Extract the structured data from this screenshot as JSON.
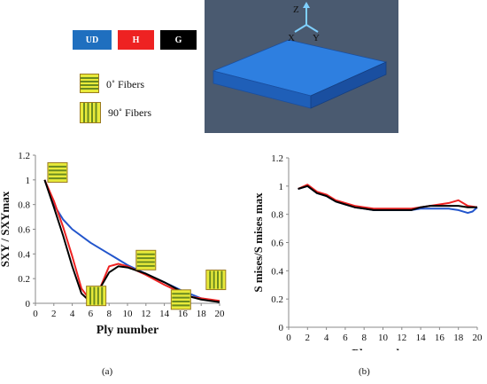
{
  "legend": {
    "ud_label": "UD",
    "ud_color": "#1f6fbf",
    "h_label": "H",
    "h_color": "#ee2222",
    "g_label": "G",
    "g_color": "#000000",
    "fiber0_label": "0˚ Fibers",
    "fiber90_label": "90˚ Fibers"
  },
  "model3d": {
    "axis_z": "Z",
    "axis_x": "X",
    "axis_y": "Y",
    "background": "#4a5a70",
    "plate_color": "#2e7fe0"
  },
  "chart_data": [
    {
      "type": "line",
      "panel": "(a)",
      "xlabel": "Ply number",
      "ylabel": "SXY / SXYmax",
      "xlim": [
        0,
        20
      ],
      "ylim": [
        0,
        1.2
      ],
      "xticks": [
        0,
        2,
        4,
        6,
        8,
        10,
        12,
        14,
        16,
        18,
        20
      ],
      "yticks": [
        0,
        0.2,
        0.4,
        0.6,
        0.8,
        1,
        1.2
      ],
      "ytick_labels": [
        "0",
        "0.2",
        "0.4",
        "0.6",
        "0.8",
        "1",
        "1.2"
      ],
      "series": [
        {
          "key": "UD",
          "color": "#2255cc",
          "x": [
            1,
            2,
            3,
            4,
            6,
            8,
            10,
            12,
            14,
            16,
            18,
            20
          ],
          "y": [
            1.0,
            0.8,
            0.68,
            0.6,
            0.49,
            0.4,
            0.31,
            0.24,
            0.17,
            0.1,
            0.04,
            0.01
          ]
        },
        {
          "key": "H",
          "color": "#ee2222",
          "x": [
            1,
            2,
            3,
            4,
            5,
            6,
            7,
            8,
            9,
            10,
            12,
            14,
            16,
            17,
            18,
            19,
            20
          ],
          "y": [
            1.0,
            0.83,
            0.62,
            0.38,
            0.12,
            0.02,
            0.12,
            0.3,
            0.32,
            0.3,
            0.23,
            0.15,
            0.08,
            0.05,
            0.04,
            0.03,
            0.02
          ]
        },
        {
          "key": "G",
          "color": "#000000",
          "x": [
            1,
            2,
            3,
            4,
            5,
            6,
            6.5,
            7,
            8,
            9,
            10,
            12,
            14,
            16,
            17,
            18,
            19,
            20
          ],
          "y": [
            1.0,
            0.78,
            0.55,
            0.3,
            0.08,
            0.01,
            0.04,
            0.12,
            0.25,
            0.3,
            0.29,
            0.24,
            0.17,
            0.09,
            0.05,
            0.03,
            0.02,
            0.01
          ]
        }
      ],
      "fiber_markers": [
        {
          "kind": "0",
          "x": 2.4,
          "y": 1.06
        },
        {
          "kind": "90",
          "x": 6.6,
          "y": 0.06
        },
        {
          "kind": "0",
          "x": 12.0,
          "y": 0.35
        },
        {
          "kind": "0",
          "x": 15.8,
          "y": 0.03
        },
        {
          "kind": "90",
          "x": 19.6,
          "y": 0.19
        }
      ]
    },
    {
      "type": "line",
      "panel": "(b)",
      "xlabel": "Ply number",
      "ylabel": "S mises/S mises max",
      "xlim": [
        0,
        20
      ],
      "ylim": [
        0,
        1.2
      ],
      "xticks": [
        0,
        2,
        4,
        6,
        8,
        10,
        12,
        14,
        16,
        18,
        20
      ],
      "yticks": [
        0,
        0.2,
        0.4,
        0.6,
        0.8,
        1,
        1.2
      ],
      "ytick_labels": [
        "0",
        "0.2",
        "0.4",
        "0.6",
        "0.8",
        "1",
        "1.2"
      ],
      "series": [
        {
          "key": "UD",
          "color": "#2255cc",
          "x": [
            1,
            2,
            3,
            4,
            5,
            6,
            7,
            8,
            9,
            10,
            11,
            12,
            13,
            14,
            15,
            16,
            17,
            18,
            19,
            19.5,
            20
          ],
          "y": [
            0.98,
            1.0,
            0.95,
            0.93,
            0.89,
            0.87,
            0.85,
            0.84,
            0.83,
            0.83,
            0.83,
            0.83,
            0.83,
            0.84,
            0.84,
            0.84,
            0.84,
            0.83,
            0.81,
            0.82,
            0.85
          ]
        },
        {
          "key": "H",
          "color": "#ee2222",
          "x": [
            1,
            2,
            3,
            4,
            5,
            6,
            7,
            8,
            9,
            10,
            11,
            12,
            13,
            14,
            15,
            16,
            17,
            18,
            19,
            20
          ],
          "y": [
            0.98,
            1.01,
            0.96,
            0.94,
            0.9,
            0.88,
            0.86,
            0.85,
            0.84,
            0.84,
            0.84,
            0.84,
            0.84,
            0.85,
            0.86,
            0.87,
            0.88,
            0.9,
            0.86,
            0.85
          ]
        },
        {
          "key": "G",
          "color": "#000000",
          "x": [
            1,
            2,
            3,
            4,
            5,
            6,
            7,
            8,
            9,
            10,
            11,
            12,
            13,
            14,
            15,
            16,
            17,
            18,
            19,
            20
          ],
          "y": [
            0.98,
            1.0,
            0.95,
            0.93,
            0.89,
            0.87,
            0.85,
            0.84,
            0.83,
            0.83,
            0.83,
            0.83,
            0.83,
            0.85,
            0.86,
            0.86,
            0.86,
            0.86,
            0.85,
            0.85
          ]
        }
      ]
    }
  ]
}
